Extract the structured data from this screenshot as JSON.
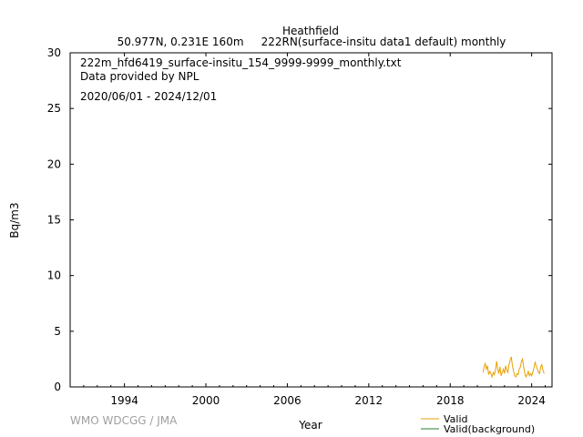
{
  "header": {
    "station": "Heathfield",
    "subtitle": "50.977N, 0.231E 160m     222RN(surface-insitu data1 default) monthly"
  },
  "info": {
    "filename": "222m_hfd6419_surface-insitu_154_9999-9999_monthly.txt",
    "provider": "Data provided by NPL",
    "period": "2020/06/01 - 2024/12/01"
  },
  "credit": "WMO WDCGG / JMA",
  "chart_data": {
    "type": "line",
    "xlabel": "Year",
    "ylabel": "Bq/m3",
    "xlim": [
      1990.0,
      2025.5
    ],
    "ylim": [
      0,
      30
    ],
    "x_ticks": [
      1994,
      2000,
      2006,
      2012,
      2018,
      2024
    ],
    "x_tick_labels": [
      "1994",
      "2000",
      "2006",
      "2012",
      "2018",
      "2024"
    ],
    "y_ticks": [
      0,
      5,
      10,
      15,
      20,
      25,
      30
    ],
    "y_tick_labels": [
      "0",
      "5",
      "10",
      "15",
      "20",
      "25",
      "30"
    ],
    "grid": false,
    "legend_position": "bottom-right",
    "series": [
      {
        "name": "Valid",
        "color": "#e8a000",
        "x": [
          2020.42,
          2020.5,
          2020.58,
          2020.67,
          2020.75,
          2020.83,
          2020.92,
          2021.0,
          2021.08,
          2021.17,
          2021.25,
          2021.33,
          2021.42,
          2021.5,
          2021.58,
          2021.67,
          2021.75,
          2021.83,
          2021.92,
          2022.0,
          2022.08,
          2022.17,
          2022.25,
          2022.33,
          2022.42,
          2022.5,
          2022.58,
          2022.67,
          2022.75,
          2022.83,
          2022.92,
          2023.0,
          2023.08,
          2023.17,
          2023.25,
          2023.33,
          2023.42,
          2023.5,
          2023.58,
          2023.67,
          2023.75,
          2023.83,
          2023.92,
          2024.0,
          2024.08,
          2024.17,
          2024.25,
          2024.33,
          2024.42,
          2024.5,
          2024.58,
          2024.67,
          2024.75,
          2024.83,
          2024.92
        ],
        "values": [
          1.3,
          1.8,
          2.1,
          1.6,
          1.9,
          1.1,
          1.4,
          1.2,
          0.9,
          1.3,
          1.1,
          1.5,
          2.3,
          1.6,
          1.2,
          1.8,
          1.0,
          1.3,
          1.6,
          1.2,
          1.9,
          1.5,
          1.3,
          2.0,
          2.4,
          2.7,
          1.9,
          1.4,
          1.0,
          0.9,
          1.2,
          1.1,
          1.6,
          1.8,
          2.3,
          2.5,
          1.7,
          1.2,
          0.9,
          1.1,
          1.4,
          1.0,
          1.2,
          1.0,
          1.3,
          1.7,
          2.2,
          1.9,
          1.6,
          1.3,
          1.2,
          1.8,
          2.0,
          1.5,
          1.2
        ]
      },
      {
        "name": "Valid(background)",
        "color": "#2e7d32",
        "x": [],
        "values": []
      }
    ]
  }
}
